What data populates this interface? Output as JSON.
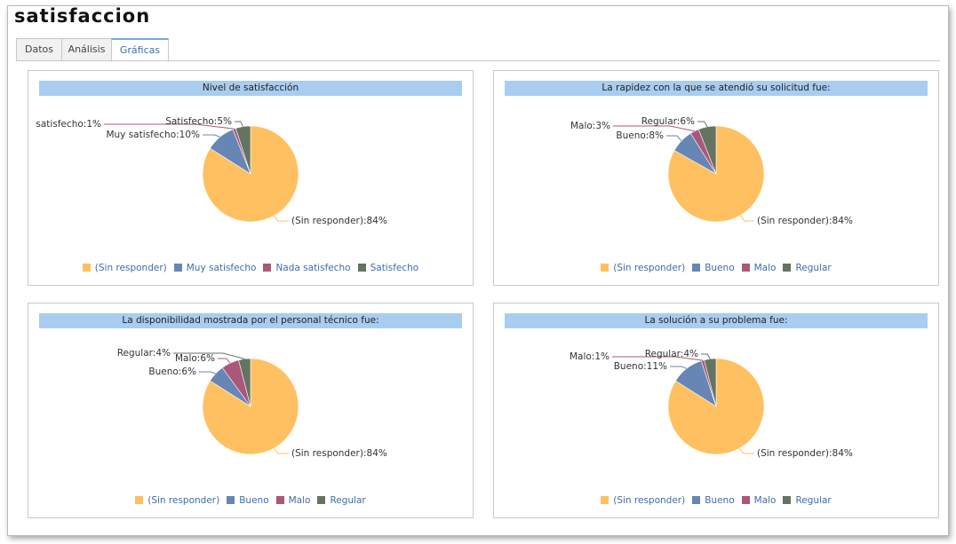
{
  "window": {
    "title": "satisfaccion"
  },
  "tabs": [
    {
      "label": "Datos"
    },
    {
      "label": "Análisis"
    },
    {
      "label": "Gráficas"
    }
  ],
  "colors": {
    "sin_responder": "#FFC061",
    "bueno": "#6786B6",
    "malo": "#A9587A",
    "regular": "#637461",
    "title_bg": "#A9CDF0",
    "legend_text": "#3D6EA8"
  },
  "chart_data": [
    {
      "type": "pie",
      "title": "Nivel de satisfacción",
      "slices": [
        {
          "label": "(Sin responder)",
          "value": 84,
          "text": "(Sin responder):84%",
          "color": "#FFC061"
        },
        {
          "label": "Muy satisfecho",
          "value": 10,
          "text": "Muy satisfecho:10%",
          "color": "#6786B6"
        },
        {
          "label": "Nada satisfecho",
          "value": 1,
          "text": "satisfecho:1%",
          "color": "#A9587A"
        },
        {
          "label": "Satisfecho",
          "value": 5,
          "text": "Satisfecho:5%",
          "color": "#637461"
        }
      ],
      "legend": [
        "(Sin responder)",
        "Muy satisfecho",
        "Nada satisfecho",
        "Satisfecho"
      ]
    },
    {
      "type": "pie",
      "title": "La rapidez con la que se atendió su solicitud fue:",
      "slices": [
        {
          "label": "(Sin responder)",
          "value": 84,
          "text": "(Sin responder):84%",
          "color": "#FFC061"
        },
        {
          "label": "Bueno",
          "value": 8,
          "text": "Bueno:8%",
          "color": "#6786B6"
        },
        {
          "label": "Malo",
          "value": 3,
          "text": "Malo:3%",
          "color": "#A9587A"
        },
        {
          "label": "Regular",
          "value": 6,
          "text": "Regular:6%",
          "color": "#637461"
        }
      ],
      "legend": [
        "(Sin responder)",
        "Bueno",
        "Malo",
        "Regular"
      ]
    },
    {
      "type": "pie",
      "title": "La disponibilidad mostrada por el personal técnico fue:",
      "slices": [
        {
          "label": "(Sin responder)",
          "value": 84,
          "text": "(Sin responder):84%",
          "color": "#FFC061"
        },
        {
          "label": "Bueno",
          "value": 6,
          "text": "Bueno:6%",
          "color": "#6786B6"
        },
        {
          "label": "Malo",
          "value": 6,
          "text": "Malo:6%",
          "color": "#A9587A"
        },
        {
          "label": "Regular",
          "value": 4,
          "text": "Regular:4%",
          "color": "#637461"
        }
      ],
      "legend": [
        "(Sin responder)",
        "Bueno",
        "Malo",
        "Regular"
      ]
    },
    {
      "type": "pie",
      "title": "La solución a su problema fue:",
      "slices": [
        {
          "label": "(Sin responder)",
          "value": 84,
          "text": "(Sin responder):84%",
          "color": "#FFC061"
        },
        {
          "label": "Bueno",
          "value": 11,
          "text": "Bueno:11%",
          "color": "#6786B6"
        },
        {
          "label": "Malo",
          "value": 1,
          "text": "Malo:1%",
          "color": "#A9587A"
        },
        {
          "label": "Regular",
          "value": 4,
          "text": "Regular:4%",
          "color": "#637461"
        }
      ],
      "legend": [
        "(Sin responder)",
        "Bueno",
        "Malo",
        "Regular"
      ]
    }
  ]
}
